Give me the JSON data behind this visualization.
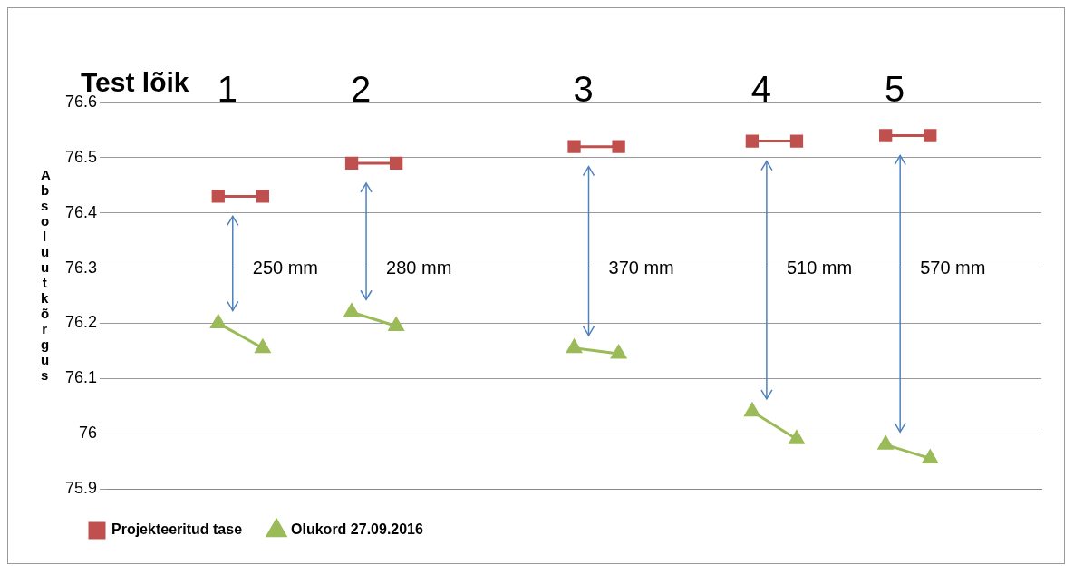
{
  "chart_data": {
    "type": "line",
    "ylabel": "Absoluutkõrgus",
    "categories": [
      null,
      null,
      null,
      null,
      null,
      null,
      null,
      null,
      null,
      null,
      null,
      null,
      null,
      null,
      null,
      null,
      null,
      null,
      null,
      null,
      null
    ],
    "series": [
      {
        "name": "Projekteeritud tase",
        "color": "#c0504d",
        "marker": "square",
        "values": [
          null,
          null,
          76.43,
          76.43,
          null,
          76.49,
          76.49,
          null,
          null,
          null,
          76.52,
          76.52,
          null,
          null,
          76.53,
          76.53,
          null,
          76.54,
          76.54,
          null,
          null
        ]
      },
      {
        "name": "Olukord 27.09.2016",
        "color": "#9bbb59",
        "marker": "triangle",
        "values": [
          null,
          null,
          76.2,
          76.155,
          null,
          76.22,
          76.195,
          null,
          null,
          null,
          76.155,
          76.145,
          null,
          null,
          76.04,
          75.99,
          null,
          75.98,
          75.955,
          null,
          null
        ]
      }
    ],
    "ylim": [
      75.9,
      76.6
    ],
    "yticks": [
      75.9,
      76,
      76.1,
      76.2,
      76.3,
      76.4,
      76.5,
      76.6
    ],
    "grid": "y",
    "legend": "bottom left",
    "annotations": [
      "Test lõik",
      "1",
      "2",
      "3",
      "4",
      "5",
      "250 mm",
      "280 mm",
      "370 mm",
      "510 mm",
      "570 mm"
    ]
  }
}
